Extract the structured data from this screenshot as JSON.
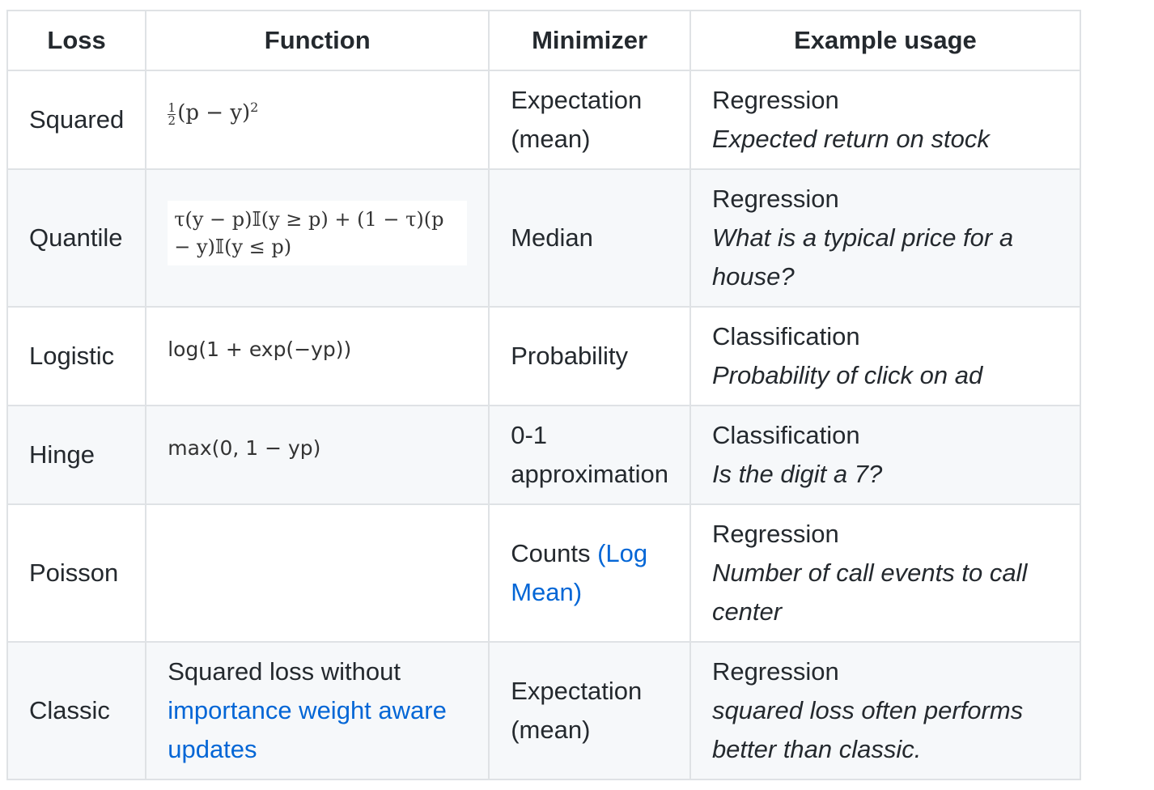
{
  "table": {
    "headers": [
      "Loss",
      "Function",
      "Minimizer",
      "Example usage"
    ],
    "rows": [
      {
        "loss": "Squared",
        "function": {
          "frac_num": "1",
          "frac_den": "2",
          "expr": "(p − y)",
          "sup": "2"
        },
        "minimizer": [
          "Expectation",
          "(mean)"
        ],
        "example_title": "Regression",
        "example_desc": "Expected return on stock"
      },
      {
        "loss": "Quantile",
        "function": {
          "expr": "τ(y − p)𝕀(y ≥ p) + (1 − τ)(p − y)𝕀(y ≤ p)"
        },
        "minimizer": [
          "Median"
        ],
        "example_title": "Regression",
        "example_desc": "What is a typical price for a house?"
      },
      {
        "loss": "Logistic",
        "function": {
          "expr": "log(1 + exp(−yp))"
        },
        "minimizer": [
          "Probability"
        ],
        "example_title": "Classification",
        "example_desc": "Probability of click on ad"
      },
      {
        "loss": "Hinge",
        "function": {
          "expr": "max(0, 1 − yp)"
        },
        "minimizer": [
          "0-1",
          "approximation"
        ],
        "example_title": "Classification",
        "example_desc": "Is the digit a 7?"
      },
      {
        "loss": "Poisson",
        "function": {
          "expr": ""
        },
        "minimizer_text": "Counts ",
        "minimizer_link": "(Log Mean)",
        "example_title": "Regression",
        "example_desc": "Number of call events to call center"
      },
      {
        "loss": "Classic",
        "function_text": "Squared loss without ",
        "function_link": "importance weight aware updates",
        "minimizer": [
          "Expectation",
          "(mean)"
        ],
        "example_title": "Regression",
        "example_desc": "squared loss often performs better than classic."
      }
    ]
  },
  "colors": {
    "link": "#0366d6",
    "border": "#dfe2e5",
    "stripe": "#f6f8fa",
    "text": "#24292e"
  }
}
